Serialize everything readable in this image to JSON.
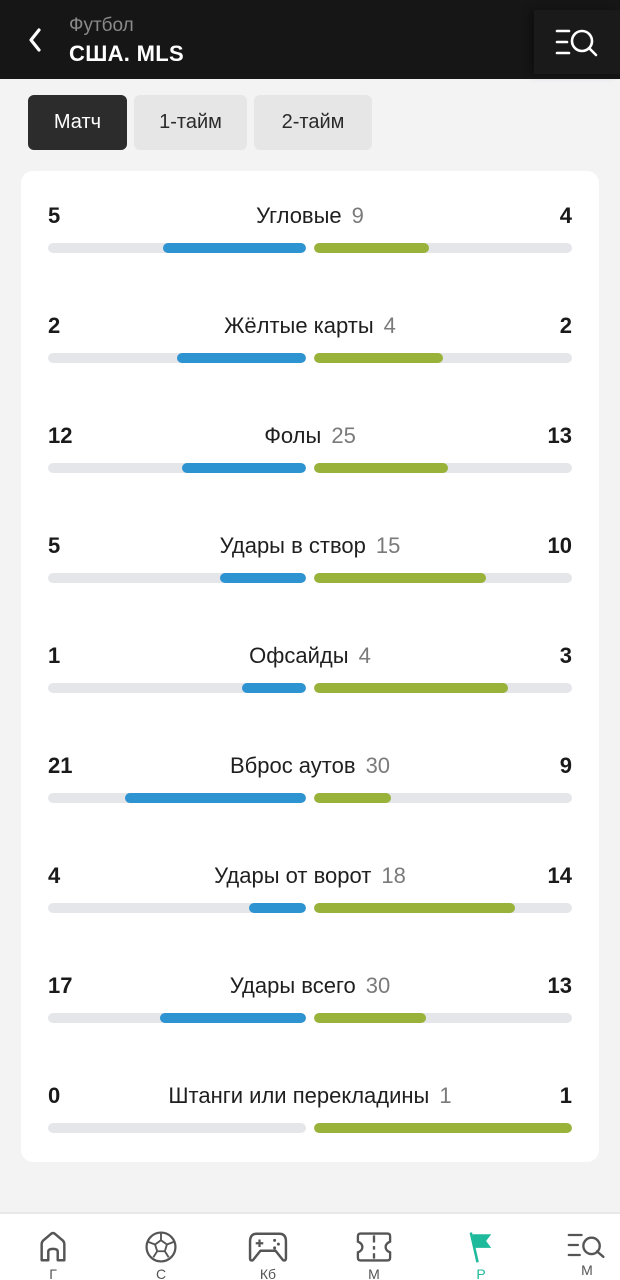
{
  "header": {
    "subtitle": "Футбол",
    "title": "США. MLS",
    "back_icon": "chevron-left-icon",
    "menu_icon": "menu-search-icon"
  },
  "tabs": [
    {
      "label": "Матч",
      "active": true
    },
    {
      "label": "1-тайм",
      "active": false
    },
    {
      "label": "2-тайм",
      "active": false
    }
  ],
  "colors": {
    "home_bar": "#2d93d1",
    "away_bar": "#98b23a",
    "track": "#e4e6e9",
    "active_nav": "#1fb99b"
  },
  "stats": [
    {
      "label": "Угловые",
      "home": 5,
      "total": 9,
      "away": 4
    },
    {
      "label": "Жёлтые карты",
      "home": 2,
      "total": 4,
      "away": 2
    },
    {
      "label": "Фолы",
      "home": 12,
      "total": 25,
      "away": 13
    },
    {
      "label": "Удары в створ",
      "home": 5,
      "total": 15,
      "away": 10
    },
    {
      "label": "Офсайды",
      "home": 1,
      "total": 4,
      "away": 3
    },
    {
      "label": "Вброс аутов",
      "home": 21,
      "total": 30,
      "away": 9
    },
    {
      "label": "Удары от ворот",
      "home": 4,
      "total": 18,
      "away": 14
    },
    {
      "label": "Удары всего",
      "home": 17,
      "total": 30,
      "away": 13
    },
    {
      "label": "Штанги или перекладины",
      "home": 0,
      "total": 1,
      "away": 1
    }
  ],
  "bottom_nav": [
    {
      "icon": "home-icon",
      "label": "Г"
    },
    {
      "icon": "soccer-ball-icon",
      "label": "С"
    },
    {
      "icon": "gamepad-icon",
      "label": "Кб"
    },
    {
      "icon": "ticket-icon",
      "label": "М"
    },
    {
      "icon": "flag-icon",
      "label": "Р",
      "active": true
    },
    {
      "icon": "menu-search-icon",
      "label": "М"
    }
  ]
}
